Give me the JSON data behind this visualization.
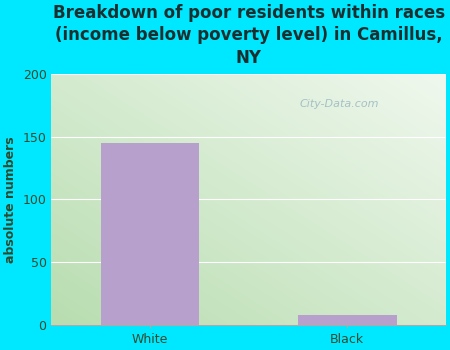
{
  "title": "Breakdown of poor residents within races\n(income below poverty level) in Camillus,\nNY",
  "categories": [
    "White",
    "Black"
  ],
  "values": [
    145,
    8
  ],
  "bar_color": "#b8a0cc",
  "ylabel": "absolute numbers",
  "ylim": [
    0,
    200
  ],
  "yticks": [
    0,
    50,
    100,
    150,
    200
  ],
  "fig_bg_color": "#00e8ff",
  "plot_bg_color_bottom_left": "#b8ddb0",
  "plot_bg_color_top_right": "#f0f8ee",
  "title_color": "#1a3030",
  "tick_label_color": "#2e4a2e",
  "ylabel_color": "#2e4a2e",
  "watermark": "City-Data.com",
  "title_fontsize": 12,
  "ylabel_fontsize": 9,
  "tick_fontsize": 9,
  "bar_width": 0.5
}
